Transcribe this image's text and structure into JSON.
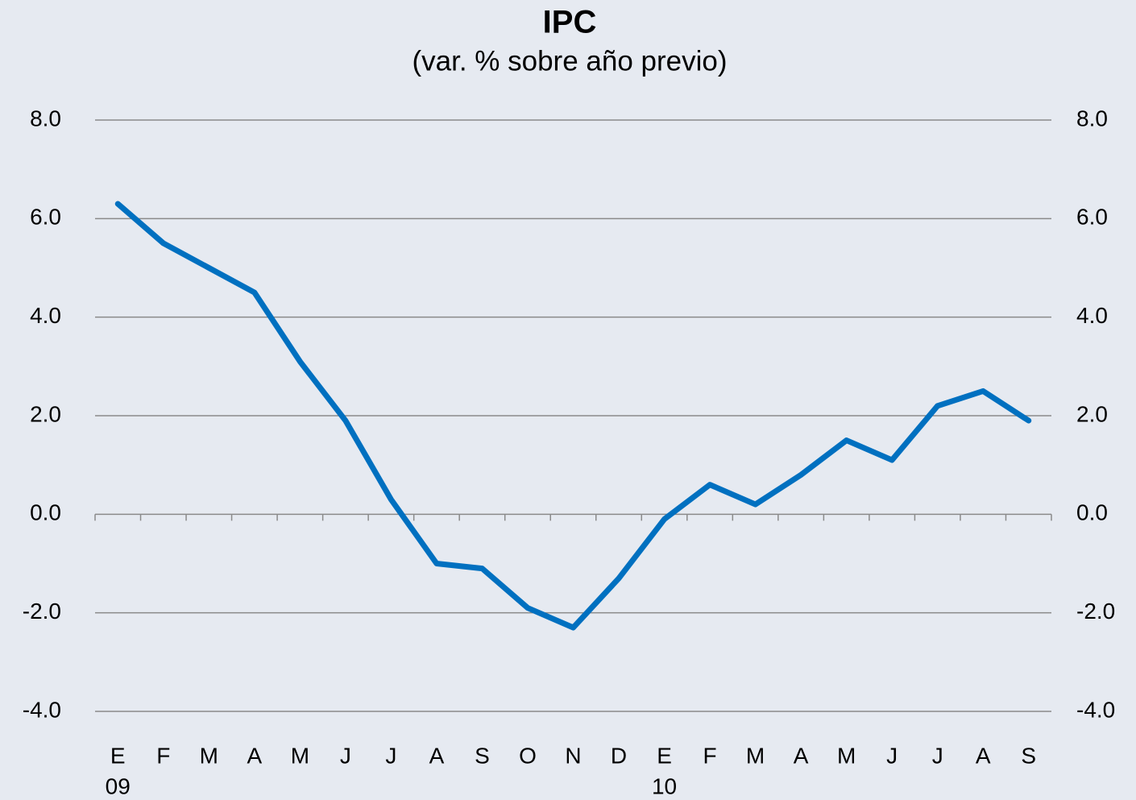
{
  "chart_data": {
    "type": "line",
    "title": "IPC",
    "subtitle": "(var. % sobre año previo)",
    "categories": [
      "E",
      "F",
      "M",
      "A",
      "M",
      "J",
      "J",
      "A",
      "S",
      "O",
      "N",
      "D",
      "E",
      "F",
      "M",
      "A",
      "M",
      "J",
      "J",
      "A",
      "S"
    ],
    "year_labels": [
      "09",
      null,
      null,
      null,
      null,
      null,
      null,
      null,
      null,
      null,
      null,
      null,
      "10",
      null,
      null,
      null,
      null,
      null,
      null,
      null,
      null
    ],
    "series": [
      {
        "name": "IPC",
        "color": "#0070c0",
        "values": [
          6.3,
          5.5,
          5.0,
          4.5,
          3.1,
          1.9,
          0.3,
          -1.0,
          -1.1,
          -1.9,
          -2.3,
          -1.3,
          -0.1,
          0.6,
          0.2,
          0.8,
          1.5,
          1.1,
          2.2,
          2.5,
          1.9
        ]
      }
    ],
    "ylim": [
      -4,
      8
    ],
    "yticks": [
      {
        "value": -4,
        "label": "-4.0"
      },
      {
        "value": -2,
        "label": "-2.0"
      },
      {
        "value": 0,
        "label": "0.0"
      },
      {
        "value": 2,
        "label": "2.0"
      },
      {
        "value": 4,
        "label": "4.0"
      },
      {
        "value": 6,
        "label": "6.0"
      },
      {
        "value": 8,
        "label": "8.0"
      }
    ],
    "y2lim": [
      -4,
      8
    ],
    "y2ticks": [
      {
        "value": -4,
        "label": "-4.0"
      },
      {
        "value": -2,
        "label": "-2.0"
      },
      {
        "value": 0,
        "label": "0.0"
      },
      {
        "value": 2,
        "label": "2.0"
      },
      {
        "value": 4,
        "label": "4.0"
      },
      {
        "value": 6,
        "label": "6.0"
      },
      {
        "value": 8,
        "label": "8.0"
      }
    ],
    "grid": true
  }
}
